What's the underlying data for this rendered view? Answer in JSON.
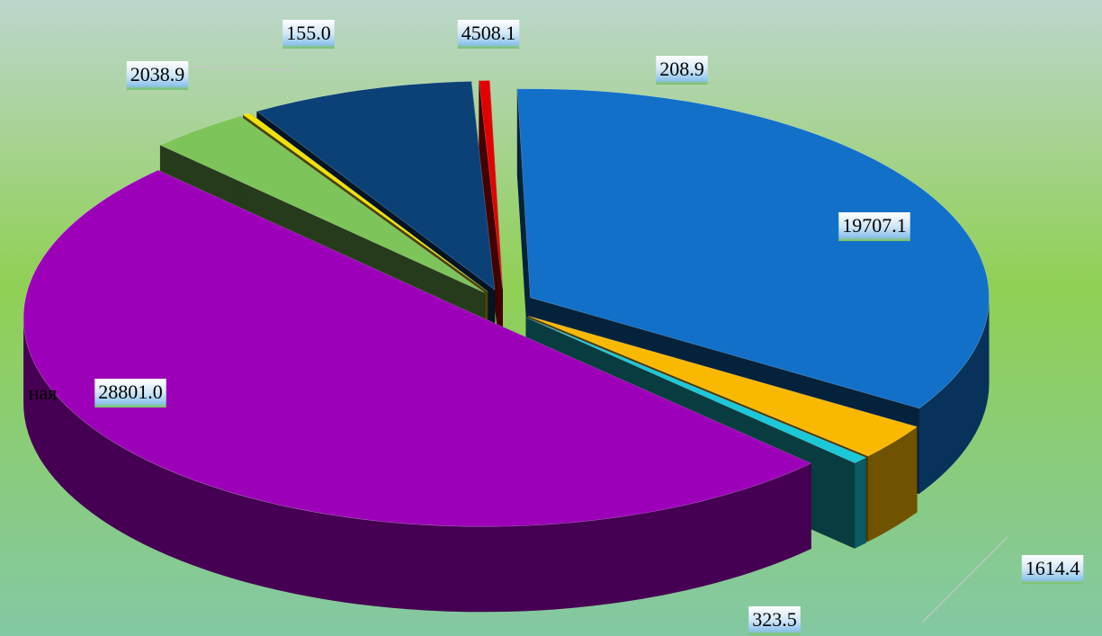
{
  "chart_data": {
    "type": "pie3d",
    "categories": [
      "ная",
      null,
      null,
      null,
      null,
      null,
      null,
      null
    ],
    "values": [
      28801.0,
      2038.9,
      155.0,
      4508.1,
      208.9,
      19707.1,
      1614.4,
      323.5
    ],
    "value_labels": [
      "28801.0",
      "2038.9",
      "155.0",
      "4508.1",
      "208.9",
      "19707.1",
      "1614.4",
      "323.5"
    ],
    "colors": [
      "#9c00b8",
      "#7dc45a",
      "#f2e200",
      "#0b4177",
      "#e20000",
      "#1270c8",
      "#f9b900",
      "#1ac8d8"
    ]
  }
}
